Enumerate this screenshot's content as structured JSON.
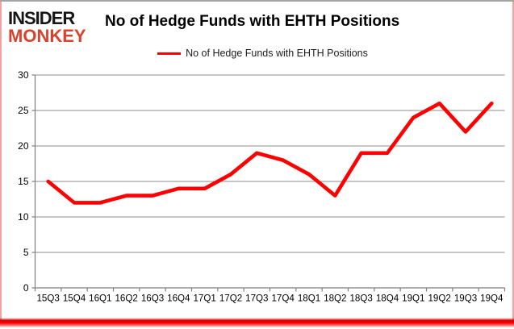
{
  "brand": {
    "line1": "INSIDER",
    "line2": "MONKEY",
    "line1_color": "#161616",
    "line2_color": "#d9432c"
  },
  "header": {
    "title": "No of Hedge Funds with EHTH Positions"
  },
  "legend": {
    "label": "No of Hedge Funds with EHTH Positions",
    "marker_color": "#ff0000"
  },
  "chart_data": {
    "type": "line",
    "title": "No of Hedge Funds with EHTH Positions",
    "xlabel": "",
    "ylabel": "",
    "categories": [
      "15Q3",
      "15Q4",
      "16Q1",
      "16Q2",
      "16Q3",
      "16Q4",
      "17Q1",
      "17Q2",
      "17Q3",
      "17Q4",
      "18Q1",
      "18Q2",
      "18Q3",
      "18Q4",
      "19Q1",
      "19Q2",
      "19Q3",
      "19Q4"
    ],
    "series": [
      {
        "name": "No of Hedge Funds with EHTH Positions",
        "color": "#ff0000",
        "values": [
          15,
          12,
          12,
          13,
          13,
          14,
          14,
          16,
          19,
          18,
          16,
          13,
          19,
          19,
          24,
          26,
          22,
          26
        ]
      }
    ],
    "ylim": [
      0,
      30
    ],
    "yticks": [
      0,
      5,
      10,
      15,
      20,
      25,
      30
    ],
    "grid": true,
    "gridline_color": "#8c8c8c",
    "axis_color": "#7f7f7f",
    "tick_label_color": "#000000",
    "legend_position": "top-center"
  }
}
